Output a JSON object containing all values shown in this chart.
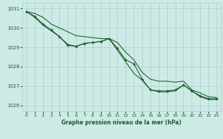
{
  "title": "Graphe pression niveau de la mer (hPa)",
  "background_color": "#ceeae6",
  "grid_color": "#a8ccc8",
  "line_color": "#1a5c2a",
  "xlim": [
    -0.5,
    23.5
  ],
  "ylim": [
    1025.7,
    1031.3
  ],
  "yticks": [
    1026,
    1027,
    1028,
    1029,
    1030,
    1031
  ],
  "xticks": [
    0,
    1,
    2,
    3,
    4,
    5,
    6,
    7,
    8,
    9,
    10,
    11,
    12,
    13,
    14,
    15,
    16,
    17,
    18,
    19,
    20,
    21,
    22,
    23
  ],
  "series": [
    {
      "y": [
        1030.85,
        1030.75,
        1030.55,
        1030.2,
        1030.0,
        1029.8,
        1029.6,
        1029.55,
        1029.5,
        1029.45,
        1029.45,
        1029.25,
        1028.75,
        1028.35,
        1027.7,
        1027.35,
        1027.25,
        1027.25,
        1027.2,
        1027.25,
        1026.8,
        1026.65,
        1026.45,
        1026.4
      ],
      "marker": false
    },
    {
      "y": [
        1030.85,
        1030.6,
        1030.2,
        1029.9,
        1029.55,
        1029.1,
        1029.05,
        1029.2,
        1029.25,
        1029.3,
        1029.45,
        1028.95,
        1028.35,
        1028.15,
        1027.35,
        1026.8,
        1026.75,
        1026.75,
        1026.8,
        1027.05,
        1026.75,
        1026.5,
        1026.35,
        1026.35
      ],
      "marker": true
    },
    {
      "y": [
        1030.85,
        1030.55,
        1030.15,
        1029.85,
        1029.55,
        1029.15,
        1029.05,
        1029.2,
        1029.25,
        1029.3,
        1029.45,
        1028.85,
        1028.25,
        1027.65,
        1027.3,
        1026.8,
        1026.7,
        1026.7,
        1026.75,
        1027.05,
        1026.75,
        1026.45,
        1026.3,
        1026.3
      ],
      "marker": false
    }
  ]
}
